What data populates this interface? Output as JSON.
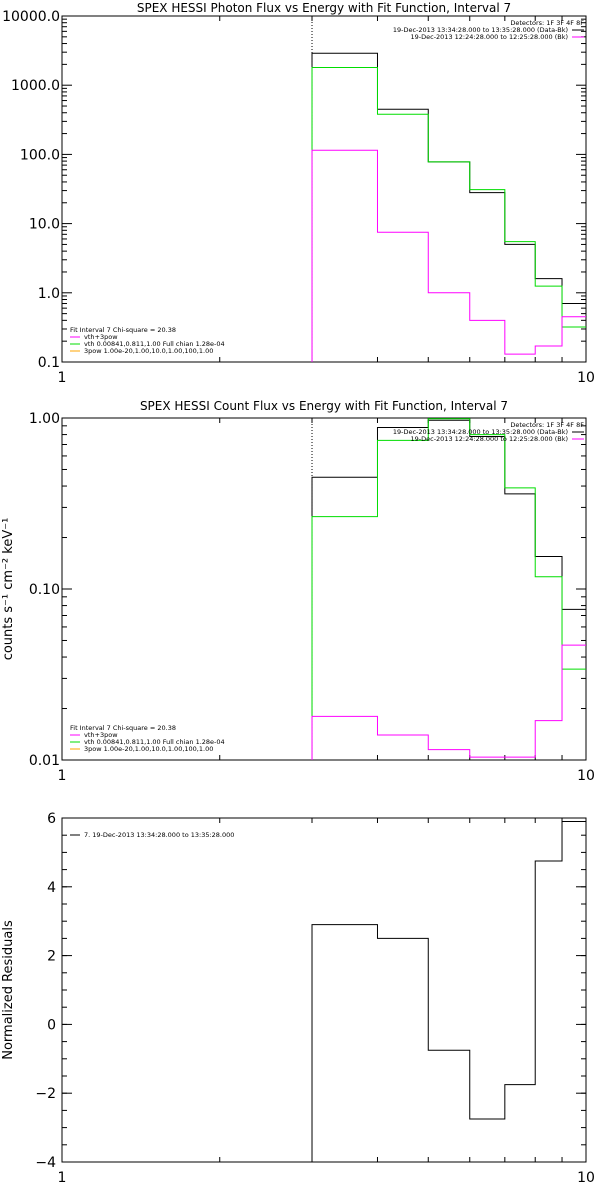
{
  "colors": {
    "background": "#ffffff",
    "axis": "#000000",
    "data": "#000000",
    "total": "#ff00ff",
    "thermal": "#00dd00",
    "powerlaw": "#ffa500",
    "background_series": "#ff00ff"
  },
  "chart_data": [
    {
      "type": "line",
      "title": "SPEX HESSI Photon Flux vs Energy with Fit Function, Interval 7",
      "xscale": "log",
      "yscale": "log",
      "xlim": [
        1,
        10
      ],
      "ylim": [
        0.1,
        10000
      ],
      "xticks": [
        "1",
        "10"
      ],
      "yticks": [
        "0.1",
        "1.0",
        "10.0",
        "100.0",
        "1000.0",
        "10000.0"
      ],
      "vline_x": 3,
      "legend": {
        "placement": "top-right",
        "header": "Detectors: 1F 3F 4F 8F",
        "entries": [
          {
            "label": "19-Dec-2013 13:34:28.000 to 13:35:28.000 (Data-Bk)",
            "color": "#000000"
          },
          {
            "label": "19-Dec-2013 12:24:28.000 to 12:25:28.000 (Bk)",
            "color": "#ff00ff"
          }
        ]
      },
      "fit_legend": {
        "placement": "bottom-left",
        "header": "Fit Interval 7   Chi-square = 20.38",
        "entries": [
          {
            "label": "vth+3pow",
            "color": "#ff00ff"
          },
          {
            "label": "vth 0.00841,0.811,1.00   Full chian 1.28e-04",
            "color": "#00dd00"
          },
          {
            "label": "3pow 1.00e-20,1.00,10.0,1.00,100,1.00",
            "color": "#ffa500"
          }
        ]
      },
      "bin_edges": [
        3,
        4,
        5,
        6,
        7,
        8,
        9,
        10
      ],
      "series": [
        {
          "color": "#000000",
          "values": [
            2900,
            450,
            78,
            28,
            5,
            1.6,
            0.7
          ]
        },
        {
          "color": "#00dd00",
          "values": [
            1800,
            380,
            78,
            31,
            5.5,
            1.25,
            0.32
          ]
        },
        {
          "color": "#ff00ff",
          "values": [
            115,
            7.5,
            1.0,
            0.4,
            0.13,
            0.17,
            0.45
          ]
        }
      ]
    },
    {
      "type": "line",
      "title": "SPEX HESSI Count Flux vs Energy with Fit Function, Interval 7",
      "ylabel": "counts s⁻¹ cm⁻² keV⁻¹",
      "xscale": "log",
      "yscale": "log",
      "xlim": [
        1,
        10
      ],
      "ylim": [
        0.01,
        1
      ],
      "xticks": [
        "1",
        "10"
      ],
      "yticks": [
        "0.01",
        "0.10",
        "1.00"
      ],
      "vline_x": 3,
      "legend": {
        "placement": "top-right",
        "header": "Detectors: 1F 3F 4F 8F",
        "entries": [
          {
            "label": "19-Dec-2013 13:34:28.000 to 13:35:28.000 (Data-Bk)",
            "color": "#000000"
          },
          {
            "label": "19-Dec-2013 12:24:28.000 to 12:25:28.000 (Bk)",
            "color": "#ff00ff"
          }
        ]
      },
      "fit_legend": {
        "placement": "bottom-left",
        "header": "Fit Interval 7   Chi-square = 20.38",
        "entries": [
          {
            "label": "vth+3pow",
            "color": "#ff00ff"
          },
          {
            "label": "vth 0.00841,0.811,1.00   Full chian 1.28e-04",
            "color": "#00dd00"
          },
          {
            "label": "3pow 1.00e-20,1.00,10.0,1.00,100,1.00",
            "color": "#ffa500"
          }
        ]
      },
      "bin_edges": [
        3,
        4,
        5,
        6,
        7,
        8,
        9,
        10
      ],
      "series": [
        {
          "color": "#000000",
          "values": [
            0.45,
            0.88,
            0.97,
            0.78,
            0.36,
            0.155,
            0.076
          ]
        },
        {
          "color": "#00dd00",
          "values": [
            0.265,
            0.74,
            0.99,
            0.8,
            0.39,
            0.118,
            0.034
          ]
        },
        {
          "color": "#ff00ff",
          "values": [
            0.018,
            0.014,
            0.0115,
            0.0104,
            0.0104,
            0.017,
            0.047
          ]
        }
      ]
    },
    {
      "type": "line",
      "title": "",
      "ylabel": "Normalized Residuals",
      "xscale": "log",
      "yscale": "linear",
      "xlim": [
        1,
        10
      ],
      "ylim": [
        -4,
        6
      ],
      "xticks": [
        "1",
        "10"
      ],
      "yticks": [
        "−4",
        "−2",
        "0",
        "2",
        "4",
        "6"
      ],
      "legend": {
        "placement": "top-left",
        "entries": [
          {
            "label": "7. 19-Dec-2013 13:34:28.000 to 13:35:28.000",
            "color": "#000000"
          }
        ]
      },
      "bin_edges": [
        3,
        4,
        5,
        6,
        7,
        8,
        9,
        10
      ],
      "series": [
        {
          "color": "#000000",
          "values": [
            2.9,
            2.5,
            -0.75,
            -2.75,
            -1.75,
            4.75,
            5.9
          ]
        }
      ]
    }
  ]
}
